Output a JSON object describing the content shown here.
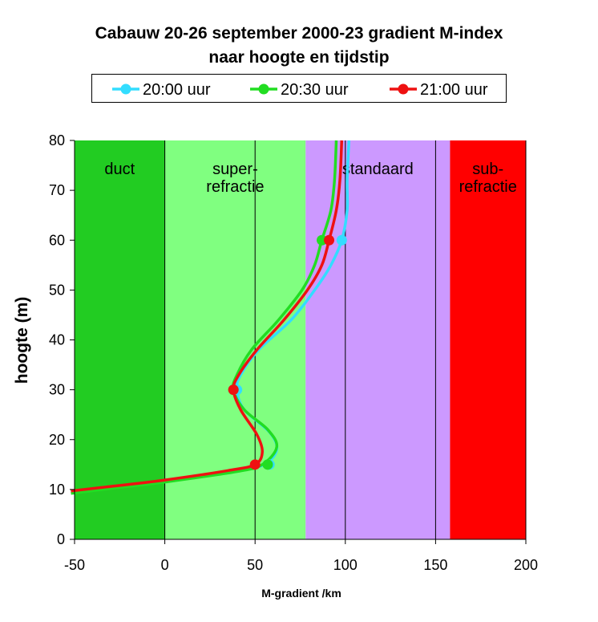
{
  "chart_data": {
    "type": "line",
    "title": "Cabauw 20-26 september 2000-23 gradient M-index",
    "subtitle": "naar hoogte en tijdstip",
    "xlabel": "M-gradient /km",
    "ylabel": "hoogte (m)",
    "xlim": [
      -50,
      200
    ],
    "ylim": [
      0,
      80
    ],
    "x_ticks": [
      -50,
      0,
      50,
      100,
      150,
      200
    ],
    "y_ticks": [
      0,
      10,
      20,
      30,
      40,
      50,
      60,
      70,
      80
    ],
    "grid": "vertical lines only",
    "legend_position": "top",
    "zones": [
      {
        "label_lines": [
          "duct"
        ],
        "from": -50,
        "to": 0,
        "color": "#22cc22"
      },
      {
        "label_lines": [
          "super-",
          "refractie"
        ],
        "from": 0,
        "to": 78,
        "color": "#80ff80"
      },
      {
        "label_lines": [
          "standaard"
        ],
        "from": 78,
        "to": 158,
        "color": "#cc99ff"
      },
      {
        "label_lines": [
          "sub-",
          "refractie"
        ],
        "from": 158,
        "to": 200,
        "color": "#ff0000"
      }
    ],
    "series": [
      {
        "name": "20:00 uur",
        "color": "#33ddff",
        "marker_points": [
          {
            "x": 58,
            "y": 15
          },
          {
            "x": 40,
            "y": 30
          },
          {
            "x": 98,
            "y": 60
          }
        ],
        "curve": [
          [
            -52,
            9.5
          ],
          [
            -30,
            10.5
          ],
          [
            0,
            11.8
          ],
          [
            40,
            13.8
          ],
          [
            55,
            15
          ],
          [
            62,
            18
          ],
          [
            58,
            21.5
          ],
          [
            44,
            26
          ],
          [
            40,
            30
          ],
          [
            42,
            33
          ],
          [
            52,
            38
          ],
          [
            70,
            44
          ],
          [
            83,
            50
          ],
          [
            92,
            55
          ],
          [
            98,
            60
          ],
          [
            101,
            66
          ],
          [
            101,
            72
          ],
          [
            102,
            80
          ]
        ]
      },
      {
        "name": "20:30 uur",
        "color": "#22dd22",
        "marker_points": [
          {
            "x": 57,
            "y": 15
          },
          {
            "x": 38,
            "y": 30
          },
          {
            "x": 87,
            "y": 60
          }
        ],
        "curve": [
          [
            -52,
            9.2
          ],
          [
            -30,
            10.2
          ],
          [
            0,
            11.5
          ],
          [
            40,
            13.6
          ],
          [
            54,
            15
          ],
          [
            62,
            18.5
          ],
          [
            57,
            22
          ],
          [
            44,
            26
          ],
          [
            38,
            30
          ],
          [
            40,
            33
          ],
          [
            48,
            38
          ],
          [
            63,
            44
          ],
          [
            76,
            50
          ],
          [
            83,
            55
          ],
          [
            87,
            60
          ],
          [
            92,
            66
          ],
          [
            94,
            72
          ],
          [
            95,
            80
          ]
        ]
      },
      {
        "name": "21:00 uur",
        "color": "#ee1111",
        "marker_points": [
          {
            "x": 50,
            "y": 15
          },
          {
            "x": 38,
            "y": 30
          },
          {
            "x": 91,
            "y": 60
          }
        ],
        "curve": [
          [
            -52,
            9.7
          ],
          [
            -30,
            10.6
          ],
          [
            0,
            11.9
          ],
          [
            35,
            13.8
          ],
          [
            50,
            15
          ],
          [
            54,
            17.5
          ],
          [
            51,
            21
          ],
          [
            42,
            26
          ],
          [
            38,
            30
          ],
          [
            41,
            33
          ],
          [
            51,
            38
          ],
          [
            66,
            44
          ],
          [
            79,
            50
          ],
          [
            87,
            55
          ],
          [
            91,
            60
          ],
          [
            95,
            66
          ],
          [
            97,
            72
          ],
          [
            98,
            80
          ]
        ]
      }
    ]
  }
}
